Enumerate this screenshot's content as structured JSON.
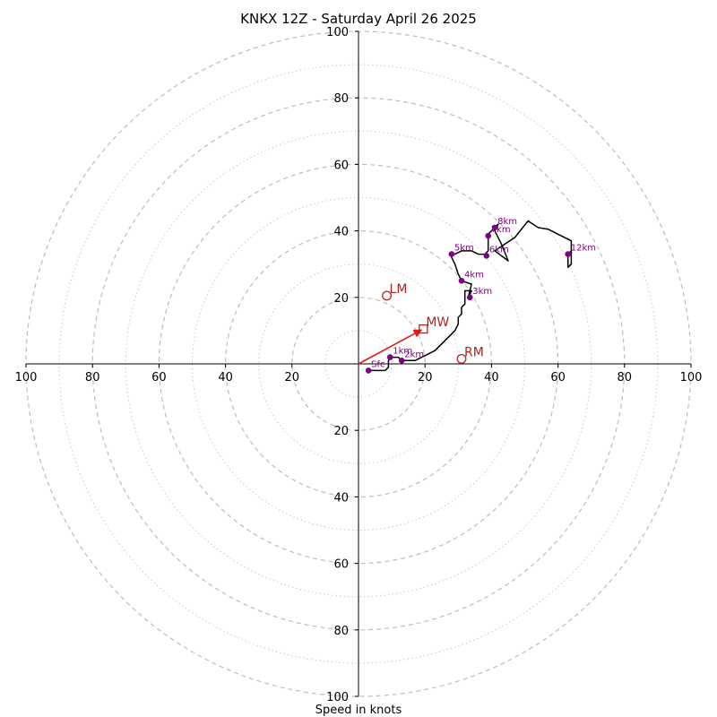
{
  "chart_data": {
    "type": "hodograph",
    "title": "KNKX 12Z - Saturday April 26 2025",
    "xlabel": "Speed in knots",
    "range": 100,
    "ring_step": 10,
    "ticks": [
      20,
      40,
      60,
      80,
      100
    ],
    "colors": {
      "trace": "#000000",
      "markers": "#800080",
      "motion": "#b22222",
      "shear_vector": "#e31a1c",
      "grid": "#bdbdbd"
    },
    "trace": [
      [
        3,
        -2
      ],
      [
        4,
        -2
      ],
      [
        8,
        -2
      ],
      [
        9,
        -1
      ],
      [
        9,
        1
      ],
      [
        10,
        2
      ],
      [
        11,
        2
      ],
      [
        12,
        2
      ],
      [
        13,
        1
      ],
      [
        15,
        1
      ],
      [
        17,
        1
      ],
      [
        19,
        2
      ],
      [
        21,
        3
      ],
      [
        23,
        4
      ],
      [
        25,
        6
      ],
      [
        27,
        8
      ],
      [
        29,
        10
      ],
      [
        30,
        12
      ],
      [
        30,
        14
      ],
      [
        31,
        15
      ],
      [
        31,
        17
      ],
      [
        32,
        18
      ],
      [
        32,
        22
      ],
      [
        34,
        22
      ],
      [
        33,
        20
      ],
      [
        34,
        24
      ],
      [
        31,
        25
      ],
      [
        30,
        27
      ],
      [
        29,
        30
      ],
      [
        28,
        32
      ],
      [
        28,
        33
      ],
      [
        29,
        33
      ],
      [
        31,
        34
      ],
      [
        34,
        34
      ],
      [
        36,
        33
      ],
      [
        38,
        33
      ],
      [
        39,
        34
      ],
      [
        39,
        37
      ],
      [
        39,
        39
      ],
      [
        41,
        41
      ],
      [
        42,
        42
      ],
      [
        41,
        40
      ],
      [
        42,
        38
      ],
      [
        43,
        36
      ],
      [
        45,
        31
      ],
      [
        41,
        34
      ],
      [
        44,
        36
      ],
      [
        47,
        38
      ],
      [
        51,
        43
      ],
      [
        54,
        41
      ],
      [
        57,
        40.5
      ],
      [
        60,
        39
      ],
      [
        64,
        37
      ],
      [
        64,
        34
      ],
      [
        63,
        33
      ],
      [
        63,
        31
      ],
      [
        63,
        29
      ],
      [
        64,
        30
      ],
      [
        64,
        31
      ],
      [
        64,
        34
      ]
    ],
    "heights": [
      {
        "label": "Sfc",
        "u": 3,
        "v": -2
      },
      {
        "label": "1km",
        "u": 9.5,
        "v": 2
      },
      {
        "label": "2km",
        "u": 13,
        "v": 1
      },
      {
        "label": "3km",
        "u": 33.5,
        "v": 20
      },
      {
        "label": "4km",
        "u": 31,
        "v": 25
      },
      {
        "label": "5km",
        "u": 28,
        "v": 33
      },
      {
        "label": "6km",
        "u": 38.5,
        "v": 32.5
      },
      {
        "label": "7km",
        "u": 39,
        "v": 38.5
      },
      {
        "label": "8km",
        "u": 41,
        "v": 41
      },
      {
        "label": "12km",
        "u": 63,
        "v": 33
      }
    ],
    "storm_motion": [
      {
        "label": "LM",
        "u": 8.5,
        "v": 20.5,
        "shape": "circle"
      },
      {
        "label": "MW",
        "u": 19.5,
        "v": 10.5,
        "shape": "square"
      },
      {
        "label": "RM",
        "u": 31,
        "v": 1.5,
        "shape": "circle"
      }
    ],
    "shear_vector": {
      "from": [
        0,
        0
      ],
      "to": [
        19.5,
        10.5
      ]
    }
  }
}
